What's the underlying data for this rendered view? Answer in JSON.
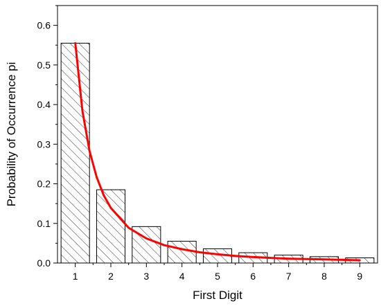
{
  "chart_data": {
    "type": "bar",
    "categories": [
      "1",
      "2",
      "3",
      "4",
      "5",
      "6",
      "7",
      "8",
      "9"
    ],
    "values": [
      0.555,
      0.185,
      0.092,
      0.055,
      0.036,
      0.026,
      0.02,
      0.016,
      0.013
    ],
    "bar_fill": "hatched",
    "curve": {
      "type": "line",
      "description": "smooth decreasing fitted curve",
      "color": "#ff0000",
      "x": [
        1.0,
        1.2,
        1.4,
        1.6,
        1.8,
        2.0,
        2.5,
        3.0,
        3.5,
        4.0,
        4.5,
        5.0,
        5.5,
        6.0,
        6.5,
        7.0,
        7.5,
        8.0,
        8.5,
        9.0
      ],
      "y": [
        0.555,
        0.385,
        0.283,
        0.217,
        0.171,
        0.139,
        0.089,
        0.062,
        0.045,
        0.035,
        0.027,
        0.022,
        0.018,
        0.015,
        0.013,
        0.011,
        0.01,
        0.009,
        0.008,
        0.007
      ]
    },
    "xlabel": "First Digit",
    "ylabel": "Probability of Occurrence pi",
    "xlim": [
      0.5,
      9.5
    ],
    "ylim": [
      0,
      0.65
    ],
    "yticks": [
      0.0,
      0.1,
      0.2,
      0.3,
      0.4,
      0.5,
      0.6
    ],
    "ytick_labels": [
      "0.0",
      "0.1",
      "0.2",
      "0.3",
      "0.4",
      "0.5",
      "0.6"
    ],
    "grid": false,
    "legend": null
  }
}
